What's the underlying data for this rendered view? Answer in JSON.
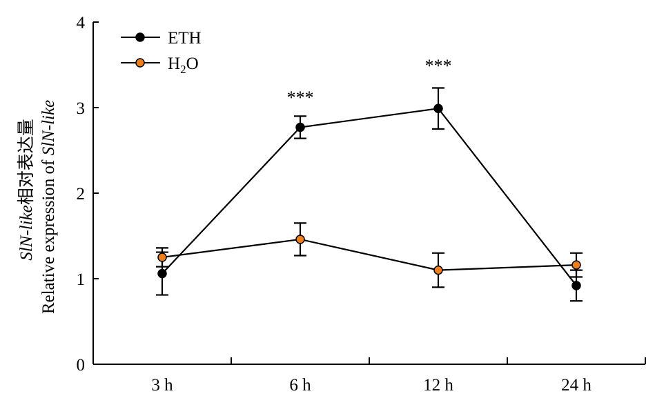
{
  "chart_data": {
    "type": "line",
    "categories": [
      "3 h",
      "6 h",
      "12 h",
      "24 h"
    ],
    "ylim": [
      0,
      4
    ],
    "yticks": [
      "0",
      "1",
      "2",
      "3",
      "4"
    ],
    "ylabel_line1_italic": "SlN-like",
    "ylabel_line1_suffix": "相对表达量",
    "ylabel_line2_prefix": "Relative expression of ",
    "ylabel_line2_italic": "SlN-like",
    "xlabel": "",
    "grid": false,
    "legend_position": "top-left",
    "series": [
      {
        "name": "ETH",
        "color": "#000000",
        "marker_fill": "#000000",
        "values": [
          1.06,
          2.77,
          2.99,
          0.92
        ],
        "errors": [
          0.25,
          0.13,
          0.24,
          0.18
        ]
      },
      {
        "name": "H₂O",
        "name_main": "H",
        "name_sub": "2",
        "name_end": "O",
        "color": "#000000",
        "marker_fill": "#f07f1a",
        "values": [
          1.25,
          1.46,
          1.1,
          1.16
        ],
        "errors": [
          0.11,
          0.19,
          0.2,
          0.14
        ]
      }
    ],
    "annotations": [
      {
        "text": "***",
        "category": "6 h",
        "y": 3.05
      },
      {
        "text": "***",
        "category": "12 h",
        "y": 3.42
      }
    ]
  }
}
